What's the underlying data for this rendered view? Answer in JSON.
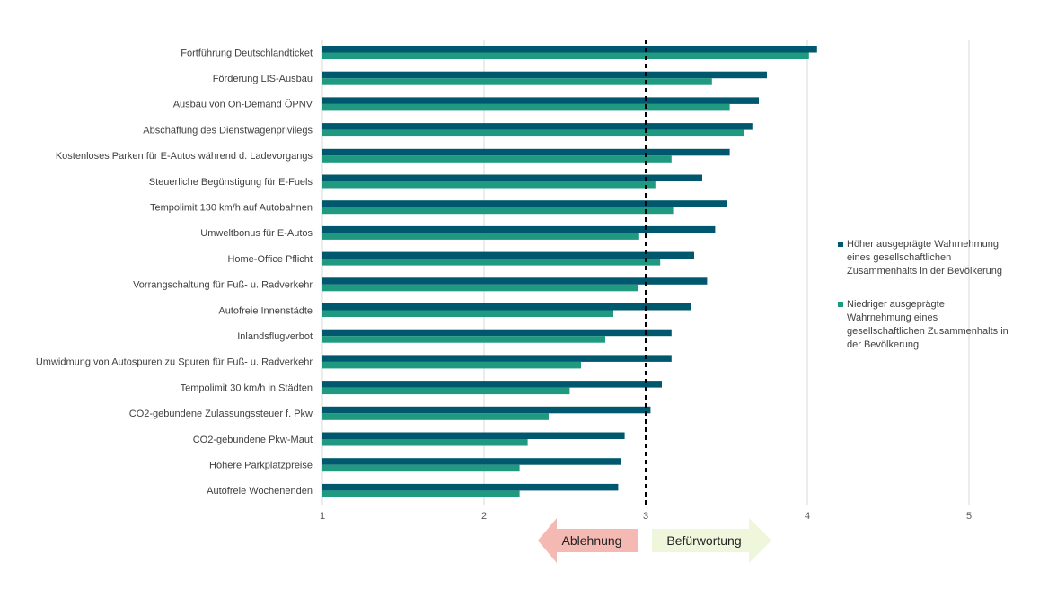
{
  "chart_data": {
    "type": "bar",
    "orientation": "horizontal",
    "categories": [
      "Fortführung Deutschlandticket",
      "Förderung LIS-Ausbau",
      "Ausbau von On-Demand ÖPNV",
      "Abschaffung des Dienstwagenprivilegs",
      "Kostenloses Parken für E-Autos während d. Ladevorgangs",
      "Steuerliche Begünstigung für E-Fuels",
      "Tempolimit 130 km/h auf Autobahnen",
      "Umweltbonus für E-Autos",
      "Home-Office Pflicht",
      "Vorrangschaltung für Fuß- u. Radverkehr",
      "Autofreie Innenstädte",
      "Inlandsflugverbot",
      "Umwidmung von Autospuren zu Spuren für Fuß- u. Radverkehr",
      "Tempolimit 30 km/h in Städten",
      "CO2-gebundene Zulassungssteuer f. Pkw",
      "CO2-gebundene Pkw-Maut",
      "Höhere Parkplatzpreise",
      "Autofreie Wochenenden"
    ],
    "series": [
      {
        "name": "Höher ausgeprägte Wahrnehmung eines gesellschaftlichen Zusammenhalts in der Bevölkerung",
        "color": "#00586E",
        "values": [
          4.06,
          3.75,
          3.7,
          3.66,
          3.52,
          3.35,
          3.5,
          3.43,
          3.3,
          3.38,
          3.28,
          3.16,
          3.16,
          3.1,
          3.03,
          2.87,
          2.85,
          2.83
        ]
      },
      {
        "name": "Niedriger ausgeprägte Wahrnehmung eines gesellschaftlichen Zusammenhalts in der Bevölkerung",
        "color": "#1F9A80",
        "values": [
          4.01,
          3.41,
          3.52,
          3.61,
          3.16,
          3.06,
          3.17,
          2.96,
          3.09,
          2.95,
          2.8,
          2.75,
          2.6,
          2.53,
          2.4,
          2.27,
          2.22,
          2.22
        ]
      }
    ],
    "xlim": [
      1,
      5
    ],
    "xticks": [
      "1",
      "2",
      "3",
      "4",
      "5"
    ],
    "reference_line": 3,
    "grid": true,
    "legend_position": "right",
    "annotations": {
      "left_arrow": "Ablehnung",
      "right_arrow": "Befürwortung"
    }
  },
  "colors": {
    "left_arrow_fill": "#F4B9B2",
    "right_arrow_fill": "#EEF6DC",
    "grid": "#D9D9D9",
    "reference": "#000000"
  }
}
